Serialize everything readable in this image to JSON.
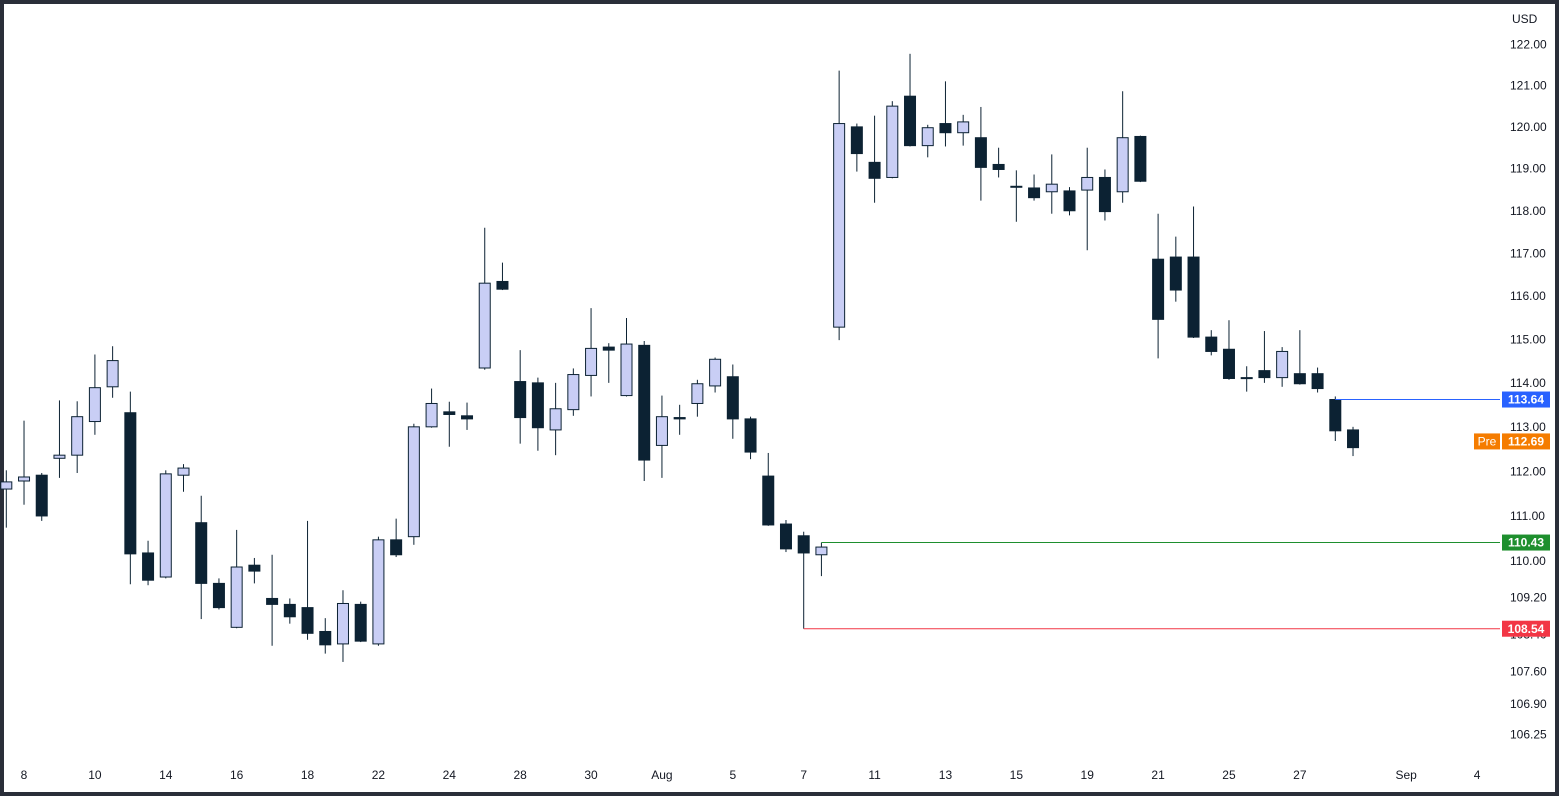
{
  "chart_data": {
    "type": "candlestick",
    "currency": "USD",
    "log_scale": true,
    "ylim": [
      105.68,
      123.11
    ],
    "yticks": [
      {
        "value": 106.25,
        "label": "106.25"
      },
      {
        "value": 106.9,
        "label": "106.90"
      },
      {
        "value": 107.6,
        "label": "107.60"
      },
      {
        "value": 108.4,
        "label": "108.40"
      },
      {
        "value": 109.2,
        "label": "109.20"
      },
      {
        "value": 110,
        "label": "110.00"
      },
      {
        "value": 111,
        "label": "111.00"
      },
      {
        "value": 112,
        "label": "112.00"
      },
      {
        "value": 113,
        "label": "113.00"
      },
      {
        "value": 114,
        "label": "114.00"
      },
      {
        "value": 115,
        "label": "115.00"
      },
      {
        "value": 116,
        "label": "116.00"
      },
      {
        "value": 117,
        "label": "117.00"
      },
      {
        "value": 118,
        "label": "118.00"
      },
      {
        "value": 119,
        "label": "119.00"
      },
      {
        "value": 120,
        "label": "120.00"
      },
      {
        "value": 121,
        "label": "121.00"
      },
      {
        "value": 122,
        "label": "122.00"
      }
    ],
    "categories": [
      null,
      "8",
      null,
      null,
      null,
      "10",
      null,
      null,
      null,
      "14",
      null,
      null,
      null,
      "16",
      null,
      null,
      null,
      "18",
      null,
      null,
      null,
      "22",
      null,
      null,
      null,
      "24",
      null,
      null,
      null,
      "28",
      null,
      null,
      null,
      "30",
      null,
      null,
      null,
      "Aug",
      null,
      null,
      null,
      "5",
      null,
      null,
      null,
      "7",
      null,
      null,
      null,
      "11",
      null,
      null,
      null,
      "13",
      null,
      null,
      null,
      "15",
      null,
      null,
      null,
      "19",
      null,
      null,
      null,
      "21",
      null,
      null,
      null,
      "25",
      null,
      null,
      null,
      "27",
      null,
      null,
      null,
      null,
      null,
      "Sep",
      null,
      null,
      null,
      "4"
    ],
    "open": [
      111.62,
      111.8,
      111.93,
      112.31,
      112.38,
      113.14,
      113.93,
      113.34,
      110.2,
      109.67,
      111.93,
      110.87,
      109.53,
      108.57,
      109.93,
      109.2,
      109.07,
      109.0,
      108.48,
      108.21,
      109.07,
      108.21,
      110.49,
      110.56,
      113.02,
      113.36,
      113.27,
      114.36,
      116.36,
      114.05,
      114.02,
      112.95,
      113.41,
      114.19,
      114.84,
      113.73,
      114.88,
      112.6,
      113.23,
      113.55,
      113.95,
      114.16,
      113.2,
      111.91,
      110.84,
      110.58,
      110.16,
      115.3,
      120.02,
      119.17,
      118.81,
      120.76,
      119.57,
      120.1,
      119.88,
      119.76,
      119.12,
      118.6,
      118.56,
      118.47,
      118.49,
      118.51,
      118.81,
      118.47,
      119.79,
      116.88,
      116.93,
      116.93,
      115.07,
      114.79,
      114.14,
      114.3,
      114.14,
      114.23,
      114.23,
      113.64,
      112.95,
      null,
      null,
      null,
      null,
      null,
      null,
      null
    ],
    "high": [
      112.04,
      113.16,
      111.98,
      113.62,
      113.6,
      114.67,
      114.86,
      113.82,
      110.47,
      112.04,
      112.18,
      111.47,
      109.64,
      110.71,
      110.09,
      110.16,
      109.2,
      110.91,
      108.77,
      109.38,
      109.13,
      110.56,
      110.96,
      113.09,
      113.89,
      113.59,
      113.57,
      117.62,
      116.8,
      114.77,
      114.14,
      114.02,
      114.35,
      115.74,
      114.93,
      115.51,
      114.98,
      113.73,
      113.52,
      114.09,
      114.6,
      114.44,
      113.25,
      112.43,
      110.93,
      110.67,
      110.43,
      121.38,
      120.1,
      120.29,
      120.64,
      121.79,
      120.07,
      121.12,
      120.31,
      120.5,
      119.52,
      118.98,
      118.88,
      119.36,
      118.58,
      119.52,
      119.0,
      120.88,
      119.81,
      117.95,
      117.41,
      118.12,
      115.23,
      115.46,
      114.4,
      115.21,
      114.84,
      115.23,
      114.37,
      113.71,
      113.02,
      null,
      null,
      null,
      null,
      null,
      null,
      null
    ],
    "low": [
      110.76,
      111.27,
      110.91,
      111.87,
      111.98,
      112.84,
      113.68,
      109.51,
      109.49,
      109.64,
      111.56,
      108.75,
      108.96,
      108.55,
      109.53,
      108.17,
      108.65,
      108.3,
      108.0,
      107.82,
      108.25,
      108.17,
      110.11,
      110.38,
      113.0,
      112.57,
      112.95,
      114.32,
      116.16,
      112.64,
      112.48,
      112.38,
      113.27,
      113.71,
      114.02,
      113.71,
      111.8,
      111.87,
      112.84,
      113.25,
      113.8,
      112.75,
      112.29,
      110.8,
      110.22,
      108.54,
      109.69,
      115.0,
      118.95,
      118.21,
      118.79,
      119.55,
      119.29,
      119.55,
      119.57,
      118.26,
      118.81,
      117.76,
      118.26,
      117.95,
      117.91,
      117.09,
      117.79,
      118.21,
      118.7,
      114.58,
      115.89,
      115.05,
      114.65,
      114.09,
      113.82,
      114.02,
      113.93,
      113.98,
      113.8,
      112.7,
      112.36,
      null,
      null,
      null,
      null,
      null,
      null,
      null
    ],
    "close": [
      111.78,
      111.89,
      111.02,
      112.38,
      113.25,
      113.91,
      114.53,
      110.18,
      109.6,
      111.96,
      112.09,
      109.53,
      109.0,
      109.89,
      109.8,
      109.07,
      108.8,
      108.44,
      108.19,
      109.09,
      108.27,
      110.49,
      110.16,
      113.02,
      113.55,
      113.3,
      113.2,
      116.32,
      116.18,
      113.23,
      113.0,
      113.43,
      114.21,
      114.81,
      114.77,
      114.91,
      112.27,
      113.25,
      113.2,
      114.0,
      114.56,
      113.2,
      112.45,
      110.82,
      110.29,
      110.2,
      110.33,
      120.1,
      119.38,
      118.79,
      120.52,
      119.57,
      120.0,
      119.88,
      120.14,
      119.05,
      119.0,
      118.58,
      118.33,
      118.65,
      118.02,
      118.81,
      118.0,
      119.76,
      118.72,
      115.48,
      116.16,
      115.07,
      114.74,
      114.12,
      114.12,
      114.14,
      114.74,
      114.0,
      113.89,
      112.93,
      112.55,
      null,
      null,
      null,
      null,
      null,
      null,
      null
    ],
    "up_color": "#c9cef5",
    "down_color": "#0c2233",
    "levels": [
      {
        "value": 113.64,
        "color": "#2962ff"
      },
      {
        "value": 110.43,
        "color": "#1e8f2e"
      },
      {
        "value": 108.54,
        "color": "#f23645"
      }
    ],
    "premarket": {
      "label": "Pre",
      "value": 112.69,
      "color": "#f57c00"
    }
  }
}
